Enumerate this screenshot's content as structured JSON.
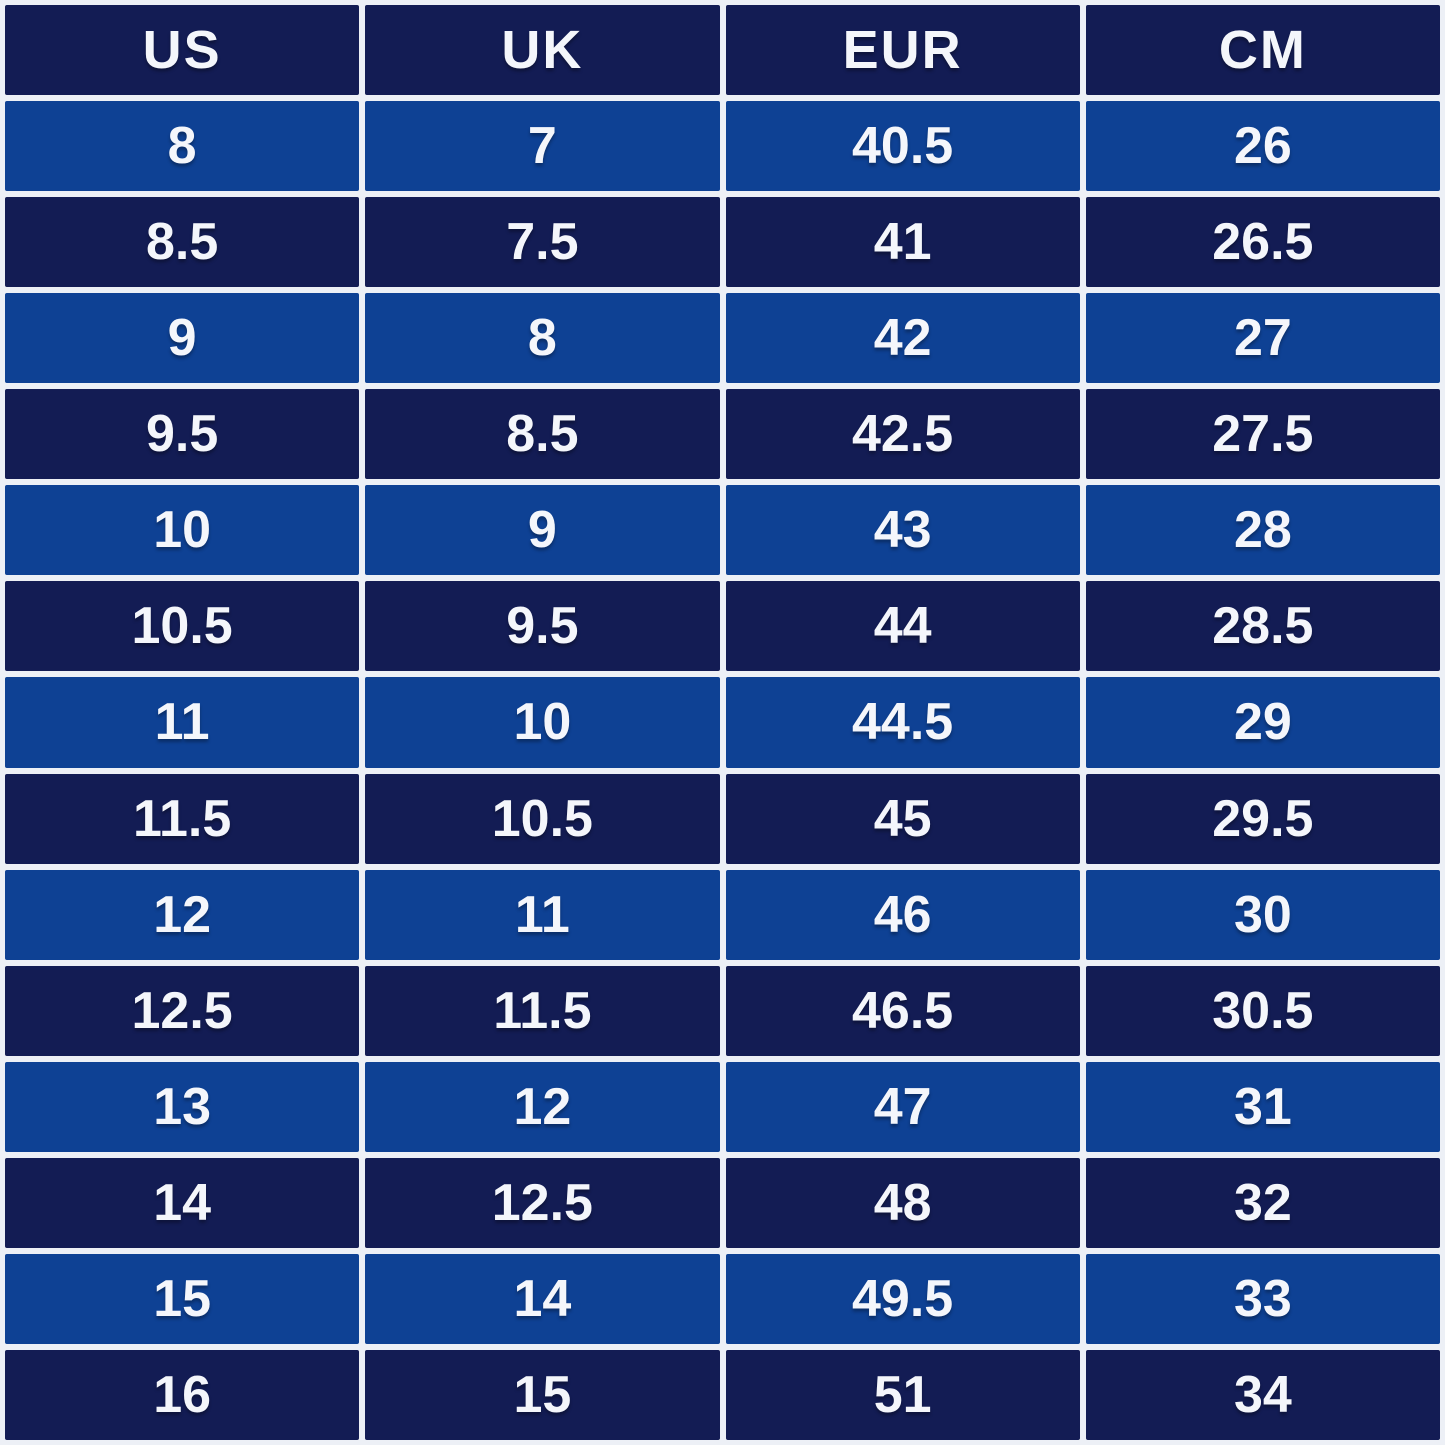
{
  "colors": {
    "row_dark": "#131c54",
    "row_light": "#0e4194",
    "grid_background": "#edf0f6",
    "text": "#f4f6fb"
  },
  "chart_data": {
    "type": "table",
    "columns": [
      "US",
      "UK",
      "EUR",
      "CM"
    ],
    "rows": [
      [
        "8",
        "7",
        "40.5",
        "26"
      ],
      [
        "8.5",
        "7.5",
        "41",
        "26.5"
      ],
      [
        "9",
        "8",
        "42",
        "27"
      ],
      [
        "9.5",
        "8.5",
        "42.5",
        "27.5"
      ],
      [
        "10",
        "9",
        "43",
        "28"
      ],
      [
        "10.5",
        "9.5",
        "44",
        "28.5"
      ],
      [
        "11",
        "10",
        "44.5",
        "29"
      ],
      [
        "11.5",
        "10.5",
        "45",
        "29.5"
      ],
      [
        "12",
        "11",
        "46",
        "30"
      ],
      [
        "12.5",
        "11.5",
        "46.5",
        "30.5"
      ],
      [
        "13",
        "12",
        "47",
        "31"
      ],
      [
        "14",
        "12.5",
        "48",
        "32"
      ],
      [
        "15",
        "14",
        "49.5",
        "33"
      ],
      [
        "16",
        "15",
        "51",
        "34"
      ]
    ]
  }
}
